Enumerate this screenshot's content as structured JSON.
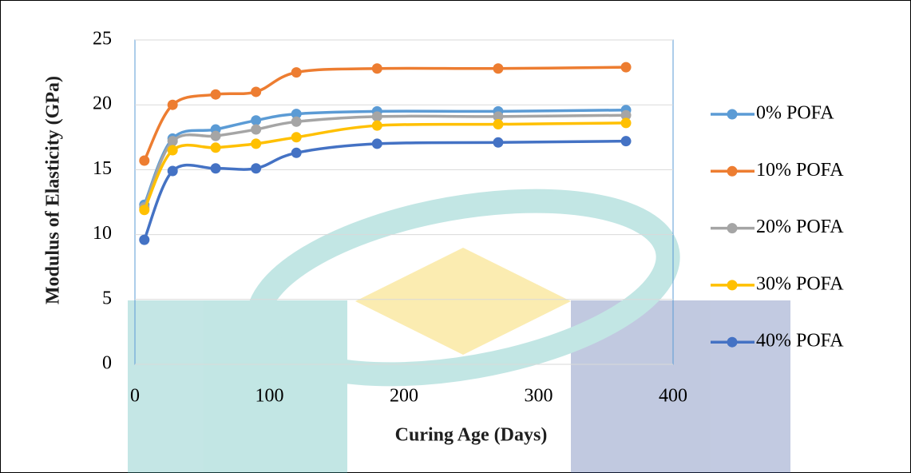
{
  "chart_data": {
    "type": "line",
    "x_label": "Curing Age (Days)",
    "y_label": "Modulus of Elasticity (GPa)",
    "x": [
      7,
      28,
      60,
      90,
      120,
      180,
      270,
      365
    ],
    "series": [
      {
        "name": "0% POFA",
        "color": "#5b9bd5",
        "values": [
          12.3,
          17.4,
          18.1,
          18.8,
          19.3,
          19.5,
          19.5,
          19.6
        ]
      },
      {
        "name": "10% POFA",
        "color": "#ed7d31",
        "values": [
          15.7,
          20.0,
          20.8,
          21.0,
          22.5,
          22.8,
          22.8,
          22.9
        ]
      },
      {
        "name": "20% POFA",
        "color": "#a5a5a5",
        "values": [
          12.1,
          17.2,
          17.6,
          18.1,
          18.7,
          19.1,
          19.1,
          19.2
        ]
      },
      {
        "name": "30% POFA",
        "color": "#ffc000",
        "values": [
          11.9,
          16.5,
          16.7,
          17.0,
          17.5,
          18.4,
          18.5,
          18.6
        ]
      },
      {
        "name": "40% POFA",
        "color": "#4472c4",
        "values": [
          9.6,
          14.9,
          15.1,
          15.1,
          16.3,
          17.0,
          17.1,
          17.2
        ]
      }
    ],
    "xlim": [
      0,
      400
    ],
    "xticks": [
      0,
      100,
      200,
      300,
      400
    ],
    "ylim": [
      0,
      25
    ],
    "yticks": [
      0,
      5,
      10,
      15,
      20,
      25
    ],
    "grid": true,
    "smooth": true,
    "legend": "right"
  }
}
